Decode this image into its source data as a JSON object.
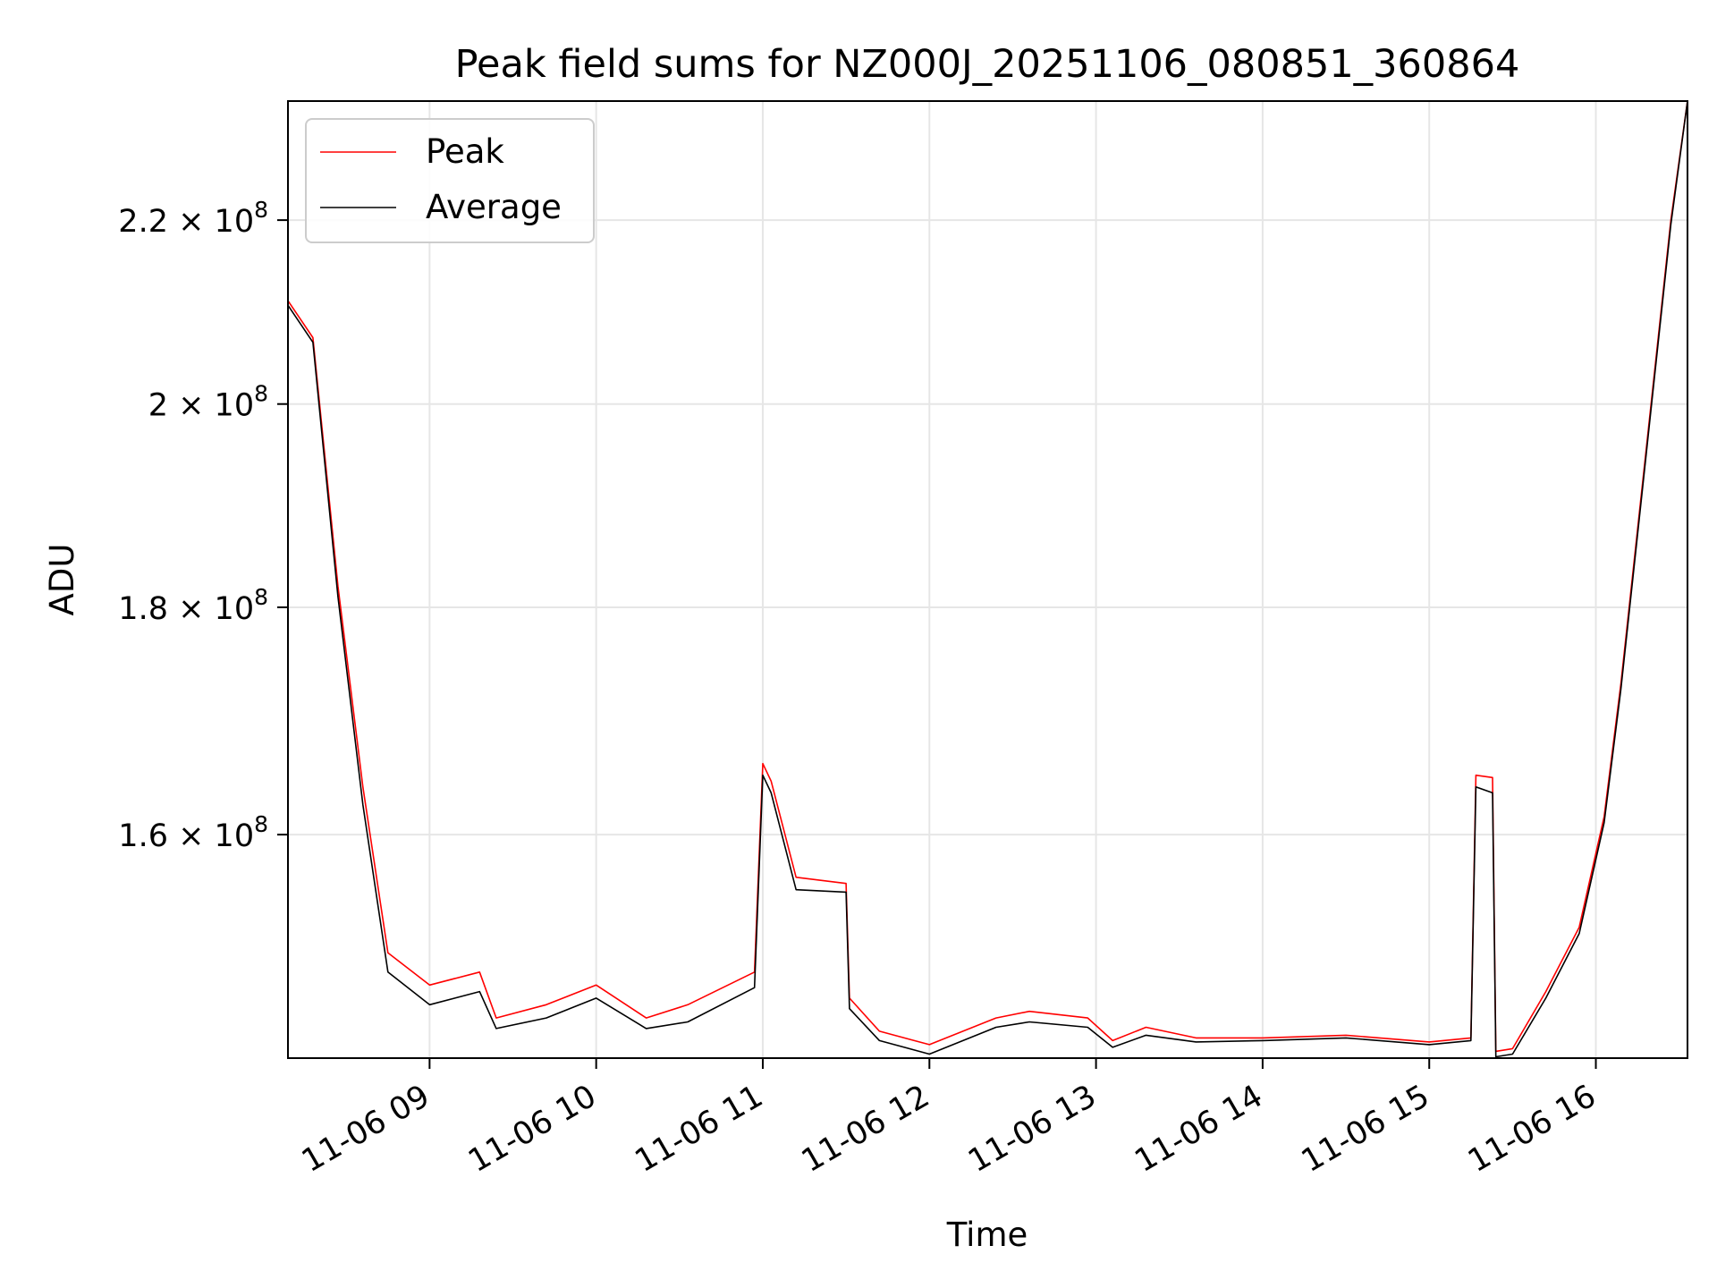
{
  "chart_data": {
    "type": "line",
    "title": "Peak field sums for NZ000J_20251106_080851_360864",
    "xlabel": "Time",
    "ylabel": "ADU",
    "yscale": "log",
    "grid": true,
    "legend_position": "upper-left",
    "xlim": [
      8.15,
      16.55
    ],
    "ylim": [
      142500000.0,
      234000000.0
    ],
    "x_ticks": [
      {
        "value": 9,
        "label": "11-06 09"
      },
      {
        "value": 10,
        "label": "11-06 10"
      },
      {
        "value": 11,
        "label": "11-06 11"
      },
      {
        "value": 12,
        "label": "11-06 12"
      },
      {
        "value": 13,
        "label": "11-06 13"
      },
      {
        "value": 14,
        "label": "11-06 14"
      },
      {
        "value": 15,
        "label": "11-06 15"
      },
      {
        "value": 16,
        "label": "11-06 16"
      }
    ],
    "y_ticks": [
      {
        "value": 160000000.0,
        "mantissa": "1.6",
        "base": "10",
        "exponent": "8"
      },
      {
        "value": 180000000.0,
        "mantissa": "1.8",
        "base": "10",
        "exponent": "8"
      },
      {
        "value": 200000000.0,
        "mantissa": "2",
        "base": "10",
        "exponent": "8"
      },
      {
        "value": 220000000.0,
        "mantissa": "2.2",
        "base": "10",
        "exponent": "8"
      }
    ],
    "series": [
      {
        "name": "Peak",
        "color": "#ff0000",
        "x": [
          8.15,
          8.3,
          8.45,
          8.6,
          8.75,
          9.0,
          9.3,
          9.4,
          9.7,
          10.0,
          10.3,
          10.55,
          10.95,
          11.0,
          11.05,
          11.2,
          11.5,
          11.52,
          11.7,
          12.0,
          12.4,
          12.6,
          12.95,
          13.1,
          13.3,
          13.6,
          14.0,
          14.5,
          15.0,
          15.25,
          15.28,
          15.38,
          15.4,
          15.5,
          15.7,
          15.9,
          16.05,
          16.15,
          16.3,
          16.45,
          16.55
        ],
        "y": [
          211000000.0,
          207000000.0,
          182000000.0,
          164000000.0,
          150500000.0,
          148000000.0,
          149000000.0,
          145500000.0,
          146500000.0,
          148000000.0,
          145500000.0,
          146500000.0,
          149000000.0,
          166000000.0,
          164500000.0,
          156500000.0,
          156000000.0,
          147000000.0,
          144500000.0,
          143500000.0,
          145500000.0,
          146000000.0,
          145500000.0,
          143800000.0,
          144800000.0,
          144000000.0,
          144000000.0,
          144200000.0,
          143700000.0,
          144000000.0,
          165000000.0,
          164800000.0,
          143000000.0,
          143200000.0,
          147500000.0,
          152500000.0,
          161500000.0,
          173000000.0,
          195000000.0,
          220000000.0,
          234000000.0
        ]
      },
      {
        "name": "Average",
        "color": "#000000",
        "x": [
          8.15,
          8.3,
          8.45,
          8.6,
          8.75,
          9.0,
          9.3,
          9.4,
          9.7,
          10.0,
          10.3,
          10.55,
          10.95,
          11.0,
          11.05,
          11.2,
          11.5,
          11.52,
          11.7,
          12.0,
          12.4,
          12.6,
          12.95,
          13.1,
          13.3,
          13.6,
          14.0,
          14.5,
          15.0,
          15.25,
          15.28,
          15.38,
          15.4,
          15.5,
          15.7,
          15.9,
          16.05,
          16.15,
          16.3,
          16.45,
          16.55
        ],
        "y": [
          210500000.0,
          206500000.0,
          181000000.0,
          162500000.0,
          149000000.0,
          146500000.0,
          147500000.0,
          144700000.0,
          145500000.0,
          147000000.0,
          144700000.0,
          145200000.0,
          147800000.0,
          165000000.0,
          163500000.0,
          155500000.0,
          155300000.0,
          146200000.0,
          143800000.0,
          142800000.0,
          144800000.0,
          145200000.0,
          144800000.0,
          143300000.0,
          144200000.0,
          143700000.0,
          143800000.0,
          144000000.0,
          143500000.0,
          143800000.0,
          164000000.0,
          163500000.0,
          142600000.0,
          142800000.0,
          147000000.0,
          152000000.0,
          161000000.0,
          172500000.0,
          194500000.0,
          219500000.0,
          234000000.0
        ]
      }
    ]
  }
}
